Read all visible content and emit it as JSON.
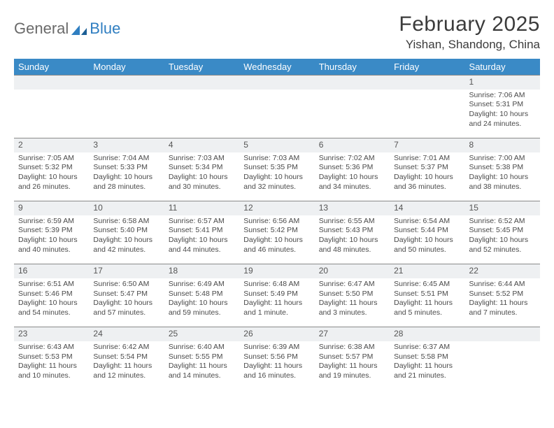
{
  "logo": {
    "text1": "General",
    "text2": "Blue"
  },
  "title": "February 2025",
  "location": "Yishan, Shandong, China",
  "colors": {
    "header_bg": "#3a8ac6",
    "header_text": "#ffffff",
    "daynum_bg": "#eef0f2",
    "daynum_border": "#8a8a8a",
    "body_text": "#4a4a4a",
    "logo_gray": "#6a6a6a",
    "logo_blue": "#2f7ec1",
    "page_bg": "#ffffff"
  },
  "dayHeaders": [
    "Sunday",
    "Monday",
    "Tuesday",
    "Wednesday",
    "Thursday",
    "Friday",
    "Saturday"
  ],
  "weeks": [
    [
      null,
      null,
      null,
      null,
      null,
      null,
      {
        "n": "1",
        "sr": "Sunrise: 7:06 AM",
        "ss": "Sunset: 5:31 PM",
        "d1": "Daylight: 10 hours",
        "d2": "and 24 minutes."
      }
    ],
    [
      {
        "n": "2",
        "sr": "Sunrise: 7:05 AM",
        "ss": "Sunset: 5:32 PM",
        "d1": "Daylight: 10 hours",
        "d2": "and 26 minutes."
      },
      {
        "n": "3",
        "sr": "Sunrise: 7:04 AM",
        "ss": "Sunset: 5:33 PM",
        "d1": "Daylight: 10 hours",
        "d2": "and 28 minutes."
      },
      {
        "n": "4",
        "sr": "Sunrise: 7:03 AM",
        "ss": "Sunset: 5:34 PM",
        "d1": "Daylight: 10 hours",
        "d2": "and 30 minutes."
      },
      {
        "n": "5",
        "sr": "Sunrise: 7:03 AM",
        "ss": "Sunset: 5:35 PM",
        "d1": "Daylight: 10 hours",
        "d2": "and 32 minutes."
      },
      {
        "n": "6",
        "sr": "Sunrise: 7:02 AM",
        "ss": "Sunset: 5:36 PM",
        "d1": "Daylight: 10 hours",
        "d2": "and 34 minutes."
      },
      {
        "n": "7",
        "sr": "Sunrise: 7:01 AM",
        "ss": "Sunset: 5:37 PM",
        "d1": "Daylight: 10 hours",
        "d2": "and 36 minutes."
      },
      {
        "n": "8",
        "sr": "Sunrise: 7:00 AM",
        "ss": "Sunset: 5:38 PM",
        "d1": "Daylight: 10 hours",
        "d2": "and 38 minutes."
      }
    ],
    [
      {
        "n": "9",
        "sr": "Sunrise: 6:59 AM",
        "ss": "Sunset: 5:39 PM",
        "d1": "Daylight: 10 hours",
        "d2": "and 40 minutes."
      },
      {
        "n": "10",
        "sr": "Sunrise: 6:58 AM",
        "ss": "Sunset: 5:40 PM",
        "d1": "Daylight: 10 hours",
        "d2": "and 42 minutes."
      },
      {
        "n": "11",
        "sr": "Sunrise: 6:57 AM",
        "ss": "Sunset: 5:41 PM",
        "d1": "Daylight: 10 hours",
        "d2": "and 44 minutes."
      },
      {
        "n": "12",
        "sr": "Sunrise: 6:56 AM",
        "ss": "Sunset: 5:42 PM",
        "d1": "Daylight: 10 hours",
        "d2": "and 46 minutes."
      },
      {
        "n": "13",
        "sr": "Sunrise: 6:55 AM",
        "ss": "Sunset: 5:43 PM",
        "d1": "Daylight: 10 hours",
        "d2": "and 48 minutes."
      },
      {
        "n": "14",
        "sr": "Sunrise: 6:54 AM",
        "ss": "Sunset: 5:44 PM",
        "d1": "Daylight: 10 hours",
        "d2": "and 50 minutes."
      },
      {
        "n": "15",
        "sr": "Sunrise: 6:52 AM",
        "ss": "Sunset: 5:45 PM",
        "d1": "Daylight: 10 hours",
        "d2": "and 52 minutes."
      }
    ],
    [
      {
        "n": "16",
        "sr": "Sunrise: 6:51 AM",
        "ss": "Sunset: 5:46 PM",
        "d1": "Daylight: 10 hours",
        "d2": "and 54 minutes."
      },
      {
        "n": "17",
        "sr": "Sunrise: 6:50 AM",
        "ss": "Sunset: 5:47 PM",
        "d1": "Daylight: 10 hours",
        "d2": "and 57 minutes."
      },
      {
        "n": "18",
        "sr": "Sunrise: 6:49 AM",
        "ss": "Sunset: 5:48 PM",
        "d1": "Daylight: 10 hours",
        "d2": "and 59 minutes."
      },
      {
        "n": "19",
        "sr": "Sunrise: 6:48 AM",
        "ss": "Sunset: 5:49 PM",
        "d1": "Daylight: 11 hours",
        "d2": "and 1 minute."
      },
      {
        "n": "20",
        "sr": "Sunrise: 6:47 AM",
        "ss": "Sunset: 5:50 PM",
        "d1": "Daylight: 11 hours",
        "d2": "and 3 minutes."
      },
      {
        "n": "21",
        "sr": "Sunrise: 6:45 AM",
        "ss": "Sunset: 5:51 PM",
        "d1": "Daylight: 11 hours",
        "d2": "and 5 minutes."
      },
      {
        "n": "22",
        "sr": "Sunrise: 6:44 AM",
        "ss": "Sunset: 5:52 PM",
        "d1": "Daylight: 11 hours",
        "d2": "and 7 minutes."
      }
    ],
    [
      {
        "n": "23",
        "sr": "Sunrise: 6:43 AM",
        "ss": "Sunset: 5:53 PM",
        "d1": "Daylight: 11 hours",
        "d2": "and 10 minutes."
      },
      {
        "n": "24",
        "sr": "Sunrise: 6:42 AM",
        "ss": "Sunset: 5:54 PM",
        "d1": "Daylight: 11 hours",
        "d2": "and 12 minutes."
      },
      {
        "n": "25",
        "sr": "Sunrise: 6:40 AM",
        "ss": "Sunset: 5:55 PM",
        "d1": "Daylight: 11 hours",
        "d2": "and 14 minutes."
      },
      {
        "n": "26",
        "sr": "Sunrise: 6:39 AM",
        "ss": "Sunset: 5:56 PM",
        "d1": "Daylight: 11 hours",
        "d2": "and 16 minutes."
      },
      {
        "n": "27",
        "sr": "Sunrise: 6:38 AM",
        "ss": "Sunset: 5:57 PM",
        "d1": "Daylight: 11 hours",
        "d2": "and 19 minutes."
      },
      {
        "n": "28",
        "sr": "Sunrise: 6:37 AM",
        "ss": "Sunset: 5:58 PM",
        "d1": "Daylight: 11 hours",
        "d2": "and 21 minutes."
      },
      null
    ]
  ]
}
